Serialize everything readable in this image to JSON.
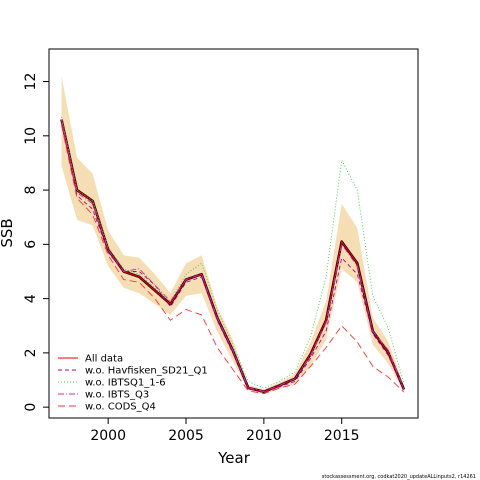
{
  "chart_data": {
    "type": "line",
    "xlabel": "Year",
    "ylabel": "SSB",
    "xlim": [
      1996.2,
      2019.9
    ],
    "ylim": [
      -0.4,
      13.2
    ],
    "xticks": [
      2000,
      2005,
      2010,
      2015
    ],
    "yticks": [
      0,
      2,
      4,
      6,
      8,
      10,
      12
    ],
    "legend_position": "bottom-left",
    "footer_text": "stockassessment.org, codkat2020_updateALLinputs2, r14261",
    "x": [
      1997,
      1998,
      1999,
      2000,
      2001,
      2002,
      2003,
      2004,
      2005,
      2006,
      2007,
      2008,
      2009,
      2010,
      2011,
      2012,
      2013,
      2014,
      2015,
      2016,
      2017,
      2018,
      2019
    ],
    "band": {
      "color": "#f5deb3",
      "lower": [
        8.9,
        6.9,
        6.7,
        5.2,
        4.4,
        4.2,
        3.8,
        3.4,
        4.1,
        4.2,
        2.8,
        1.7,
        0.62,
        0.48,
        0.68,
        0.88,
        1.5,
        2.5,
        5.1,
        4.6,
        2.3,
        1.6,
        0.55
      ],
      "upper": [
        12.2,
        9.2,
        8.6,
        6.5,
        5.6,
        5.5,
        4.9,
        4.2,
        5.3,
        5.6,
        3.7,
        2.5,
        0.8,
        0.66,
        0.92,
        1.22,
        2.4,
        3.9,
        7.5,
        6.6,
        3.3,
        2.4,
        0.76
      ]
    },
    "series": [
      {
        "name": "All data",
        "color": "#ff0000",
        "dash": "",
        "values": [
          10.6,
          8.0,
          7.6,
          5.8,
          5.0,
          4.8,
          4.3,
          3.8,
          4.7,
          4.9,
          3.3,
          2.1,
          0.71,
          0.57,
          0.8,
          1.05,
          1.95,
          3.2,
          6.1,
          5.3,
          2.8,
          2.0,
          0.65
        ]
      },
      {
        "name": "w.o. Havfisken_SD21_Q1",
        "color": "#b0008a",
        "dash": "4,3",
        "values": [
          10.5,
          7.8,
          7.3,
          5.7,
          5.0,
          5.0,
          4.5,
          3.7,
          4.6,
          4.8,
          3.2,
          2.0,
          0.68,
          0.54,
          0.75,
          0.95,
          1.8,
          2.8,
          5.5,
          4.9,
          2.7,
          1.9,
          0.62
        ]
      },
      {
        "name": "w.o. IBTSQ1_1-6",
        "color": "#44cc44",
        "dash": "1,2",
        "values": [
          10.7,
          8.0,
          7.6,
          5.9,
          5.1,
          4.9,
          4.4,
          3.9,
          4.9,
          5.3,
          3.6,
          2.3,
          0.95,
          0.7,
          0.95,
          1.3,
          2.6,
          4.8,
          9.1,
          8.0,
          4.1,
          2.9,
          0.85
        ]
      },
      {
        "name": "w.o. IBTS_Q3",
        "color": "#cc3399",
        "dash": "6,2,1,2",
        "values": [
          10.6,
          7.9,
          7.5,
          5.8,
          5.0,
          5.1,
          4.5,
          3.9,
          4.7,
          4.9,
          3.3,
          2.1,
          0.72,
          0.58,
          0.8,
          1.05,
          1.9,
          3.1,
          6.0,
          5.2,
          2.8,
          2.1,
          0.66
        ]
      },
      {
        "name": "w.o. CODS_Q4",
        "color": "#ff3333",
        "dash": "7,4",
        "values": [
          10.4,
          7.7,
          7.1,
          5.6,
          4.7,
          4.6,
          4.0,
          3.2,
          3.6,
          3.4,
          2.2,
          1.4,
          0.6,
          0.5,
          0.7,
          0.85,
          1.5,
          2.2,
          3.0,
          2.4,
          1.5,
          1.1,
          0.55
        ]
      }
    ],
    "main_line_color": "#330011"
  }
}
